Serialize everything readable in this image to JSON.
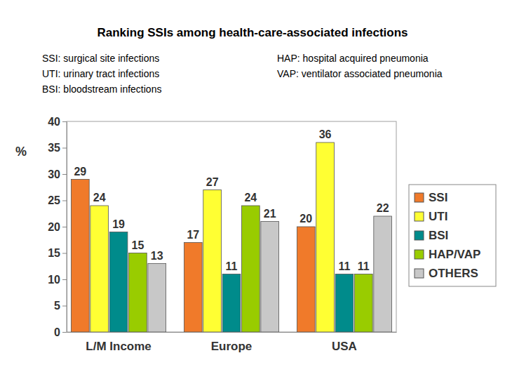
{
  "chart_data": {
    "type": "bar",
    "title": "Ranking SSIs among health-care-associated infections",
    "annotations": [
      "SSI: surgical site infections",
      "UTI: urinary tract infections",
      "BSI: bloodstream infections",
      "HAP: hospital acquired pneumonia",
      "VAP: ventilator associated pneumonia"
    ],
    "y_label": "%",
    "categories": [
      "L/M Income",
      "Europe",
      "USA"
    ],
    "series": [
      {
        "name": "SSI",
        "color": "#f07a2a",
        "values": [
          29,
          17,
          20
        ]
      },
      {
        "name": "UTI",
        "color": "#ffff33",
        "values": [
          24,
          27,
          36
        ]
      },
      {
        "name": "BSI",
        "color": "#008b8b",
        "values": [
          19,
          11,
          11
        ]
      },
      {
        "name": "HAP/VAP",
        "color": "#99cc00",
        "values": [
          15,
          24,
          11
        ]
      },
      {
        "name": "OTHERS",
        "color": "#c8c8c8",
        "values": [
          13,
          21,
          22
        ]
      }
    ],
    "ylim": [
      0,
      40
    ],
    "yticks": [
      0,
      5,
      10,
      15,
      20,
      25,
      30,
      35,
      40
    ],
    "grid": false,
    "legend": "right",
    "data_labels": true
  }
}
